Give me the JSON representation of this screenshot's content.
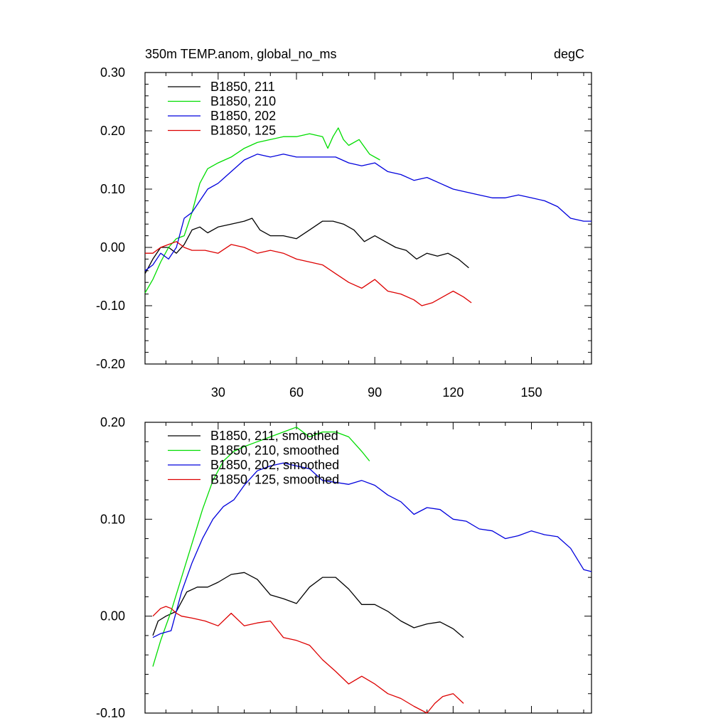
{
  "chart_data": [
    {
      "type": "line",
      "title": "350m TEMP.anom, global_no_ms",
      "units": "degC",
      "xlim": [
        2,
        173
      ],
      "ylim": [
        -0.2,
        0.3
      ],
      "yticks": [
        "0.30",
        "0.20",
        "0.10",
        "0.00",
        "-0.10",
        "-0.20"
      ],
      "ytick_values": [
        0.3,
        0.2,
        0.1,
        0.0,
        -0.1,
        -0.2
      ],
      "xticks": [
        "30",
        "60",
        "90",
        "120",
        "150"
      ],
      "xtick_values": [
        30,
        60,
        90,
        120,
        150
      ],
      "grid": false,
      "legend_position": "top-left",
      "series": [
        {
          "name": "B1850, 211",
          "color": "#000000",
          "x": [
            2,
            5,
            8,
            11,
            14,
            17,
            20,
            23,
            26,
            30,
            35,
            40,
            43,
            46,
            50,
            55,
            60,
            65,
            70,
            74,
            78,
            82,
            86,
            90,
            94,
            98,
            102,
            106,
            110,
            114,
            118,
            122,
            126
          ],
          "y": [
            -0.045,
            -0.02,
            0.0,
            0.0,
            -0.01,
            0.005,
            0.03,
            0.035,
            0.025,
            0.035,
            0.04,
            0.045,
            0.05,
            0.03,
            0.02,
            0.02,
            0.015,
            0.03,
            0.045,
            0.045,
            0.04,
            0.03,
            0.01,
            0.02,
            0.01,
            0.0,
            -0.005,
            -0.02,
            -0.01,
            -0.015,
            -0.01,
            -0.02,
            -0.035
          ]
        },
        {
          "name": "B1850, 210",
          "color": "#00DD00",
          "x": [
            2,
            5,
            8,
            11,
            14,
            17,
            20,
            23,
            26,
            30,
            35,
            40,
            45,
            50,
            55,
            60,
            65,
            70,
            72,
            74,
            76,
            78,
            80,
            84,
            88,
            92
          ],
          "y": [
            -0.078,
            -0.055,
            -0.025,
            0.0,
            0.015,
            0.02,
            0.06,
            0.11,
            0.135,
            0.145,
            0.155,
            0.17,
            0.18,
            0.185,
            0.19,
            0.19,
            0.195,
            0.19,
            0.17,
            0.19,
            0.205,
            0.185,
            0.175,
            0.185,
            0.16,
            0.15
          ]
        },
        {
          "name": "B1850, 202",
          "color": "#0000DD",
          "x": [
            2,
            5,
            8,
            11,
            14,
            17,
            20,
            23,
            26,
            30,
            35,
            40,
            45,
            50,
            55,
            60,
            65,
            70,
            75,
            80,
            85,
            90,
            95,
            100,
            105,
            110,
            115,
            120,
            125,
            130,
            135,
            140,
            145,
            150,
            155,
            160,
            165,
            170,
            173
          ],
          "y": [
            -0.04,
            -0.03,
            -0.01,
            -0.02,
            0.0,
            0.05,
            0.06,
            0.08,
            0.1,
            0.11,
            0.13,
            0.15,
            0.16,
            0.155,
            0.16,
            0.155,
            0.155,
            0.155,
            0.155,
            0.145,
            0.14,
            0.145,
            0.13,
            0.125,
            0.115,
            0.12,
            0.11,
            0.1,
            0.095,
            0.09,
            0.085,
            0.085,
            0.09,
            0.085,
            0.08,
            0.07,
            0.05,
            0.045,
            0.045
          ]
        },
        {
          "name": "B1850, 125",
          "color": "#DD0000",
          "x": [
            2,
            5,
            8,
            11,
            14,
            17,
            20,
            25,
            30,
            35,
            40,
            45,
            50,
            55,
            60,
            65,
            70,
            75,
            80,
            85,
            90,
            95,
            100,
            105,
            108,
            112,
            116,
            120,
            124,
            127
          ],
          "y": [
            -0.01,
            -0.01,
            0.0,
            0.005,
            0.01,
            0.0,
            -0.005,
            -0.005,
            -0.01,
            0.005,
            0.0,
            -0.01,
            -0.005,
            -0.01,
            -0.02,
            -0.025,
            -0.03,
            -0.045,
            -0.06,
            -0.07,
            -0.055,
            -0.075,
            -0.08,
            -0.09,
            -0.1,
            -0.095,
            -0.085,
            -0.075,
            -0.085,
            -0.095
          ]
        }
      ]
    },
    {
      "type": "line",
      "xlim": [
        2,
        173
      ],
      "ylim": [
        -0.1,
        0.2
      ],
      "yticks": [
        "0.20",
        "0.10",
        "0.00",
        "-0.10"
      ],
      "ytick_values": [
        0.2,
        0.1,
        0.0,
        -0.1
      ],
      "grid": false,
      "legend_position": "top-left",
      "series": [
        {
          "name": "B1850, 211, smoothed",
          "color": "#000000",
          "x": [
            5,
            7,
            10,
            14,
            18,
            22,
            26,
            30,
            35,
            40,
            45,
            50,
            55,
            60,
            65,
            70,
            75,
            80,
            85,
            90,
            95,
            100,
            105,
            110,
            115,
            120,
            124
          ],
          "y": [
            -0.02,
            -0.005,
            0.0,
            0.005,
            0.025,
            0.03,
            0.03,
            0.035,
            0.043,
            0.045,
            0.038,
            0.022,
            0.018,
            0.013,
            0.03,
            0.04,
            0.04,
            0.028,
            0.012,
            0.012,
            0.005,
            -0.005,
            -0.012,
            -0.008,
            -0.006,
            -0.013,
            -0.022
          ]
        },
        {
          "name": "B1850, 210, smoothed",
          "color": "#00DD00",
          "x": [
            5,
            8,
            12,
            16,
            20,
            24,
            28,
            32,
            36,
            40,
            45,
            50,
            55,
            60,
            65,
            70,
            75,
            80,
            85,
            88
          ],
          "y": [
            -0.052,
            -0.025,
            0.005,
            0.04,
            0.075,
            0.11,
            0.14,
            0.16,
            0.17,
            0.175,
            0.18,
            0.185,
            0.19,
            0.195,
            0.185,
            0.19,
            0.19,
            0.185,
            0.17,
            0.16
          ]
        },
        {
          "name": "B1850, 202, smoothed",
          "color": "#0000DD",
          "x": [
            5,
            8,
            12,
            16,
            20,
            24,
            28,
            32,
            36,
            40,
            45,
            50,
            55,
            60,
            65,
            70,
            75,
            80,
            85,
            90,
            95,
            100,
            105,
            110,
            115,
            120,
            125,
            130,
            135,
            140,
            145,
            150,
            155,
            160,
            165,
            170,
            173
          ],
          "y": [
            -0.022,
            -0.018,
            -0.015,
            0.025,
            0.055,
            0.08,
            0.1,
            0.113,
            0.12,
            0.135,
            0.15,
            0.155,
            0.158,
            0.155,
            0.152,
            0.14,
            0.138,
            0.136,
            0.14,
            0.135,
            0.125,
            0.118,
            0.105,
            0.112,
            0.11,
            0.1,
            0.098,
            0.09,
            0.088,
            0.08,
            0.083,
            0.088,
            0.084,
            0.082,
            0.07,
            0.048,
            0.046
          ]
        },
        {
          "name": "B1850, 125, smoothed",
          "color": "#DD0000",
          "x": [
            5,
            8,
            10,
            12,
            14,
            16,
            20,
            25,
            30,
            35,
            40,
            45,
            50,
            55,
            60,
            65,
            70,
            75,
            80,
            85,
            90,
            95,
            100,
            105,
            110,
            113,
            116,
            120,
            124
          ],
          "y": [
            0.0,
            0.008,
            0.01,
            0.008,
            0.003,
            0.0,
            -0.002,
            -0.005,
            -0.01,
            0.003,
            -0.01,
            -0.007,
            -0.005,
            -0.022,
            -0.025,
            -0.03,
            -0.045,
            -0.057,
            -0.07,
            -0.062,
            -0.07,
            -0.08,
            -0.085,
            -0.093,
            -0.1,
            -0.09,
            -0.083,
            -0.08,
            -0.09
          ]
        }
      ]
    }
  ]
}
